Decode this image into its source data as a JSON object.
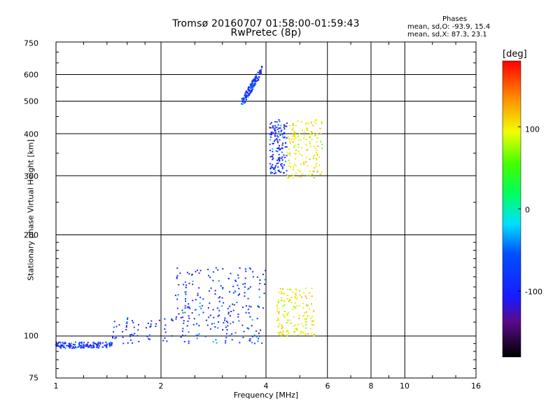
{
  "header": {
    "title_line1": "Tromsø 20160707 01:58:00-01:59:43",
    "title_line2": "RwPretec (8p)",
    "phases_heading": "Phases",
    "phases_o": "mean, sd,O: -93.9, 15.4",
    "phases_x": "mean, sd,X:  87.3, 23.1"
  },
  "colorbar": {
    "unit": "[deg]",
    "ticks": [
      "100",
      "0",
      "-100"
    ]
  },
  "chart_data": {
    "type": "scatter",
    "title": "Tromsø 20160707 01:58:00-01:59:43",
    "subtitle": "RwPretec (8p)",
    "xlabel": "Frequency [MHz]",
    "ylabel": "Stationary phase Virtual Height [km]",
    "x_scale": "log",
    "y_scale": "log",
    "xlim": [
      1,
      16
    ],
    "ylim": [
      75,
      750
    ],
    "x_ticks": [
      "1",
      "2",
      "4",
      "6",
      "8",
      "10",
      "16"
    ],
    "y_ticks": [
      "75",
      "100",
      "200",
      "300",
      "400",
      "500",
      "600",
      "750"
    ],
    "grid": true,
    "colorbar": {
      "label": "[deg]",
      "range": [
        -180,
        180
      ],
      "ticks": [
        100,
        0,
        -100
      ]
    },
    "series": [
      {
        "color": "blue",
        "x_range": [
          1.0,
          1.45
        ],
        "y_range": [
          92,
          96
        ],
        "approx_phase": -100
      },
      {
        "color": "blue",
        "x_range": [
          1.45,
          3.9
        ],
        "y_range": [
          95,
          115
        ],
        "approx_phase": -100
      },
      {
        "color": "blue",
        "x_range": [
          2.2,
          4.0
        ],
        "y_range": [
          115,
          160
        ],
        "approx_phase": -100
      },
      {
        "color": "yellow",
        "x_range": [
          4.3,
          5.5
        ],
        "y_range": [
          100,
          140
        ],
        "approx_phase": 100
      },
      {
        "color": "blue",
        "x_range": [
          3.4,
          3.9
        ],
        "y_range": [
          490,
          640
        ],
        "approx_phase": -100
      },
      {
        "color": "blue",
        "x_range": [
          4.1,
          4.6
        ],
        "y_range": [
          300,
          440
        ],
        "approx_phase": -100
      },
      {
        "color": "yellow",
        "x_range": [
          4.6,
          5.8
        ],
        "y_range": [
          295,
          440
        ],
        "approx_phase": 100
      }
    ]
  }
}
